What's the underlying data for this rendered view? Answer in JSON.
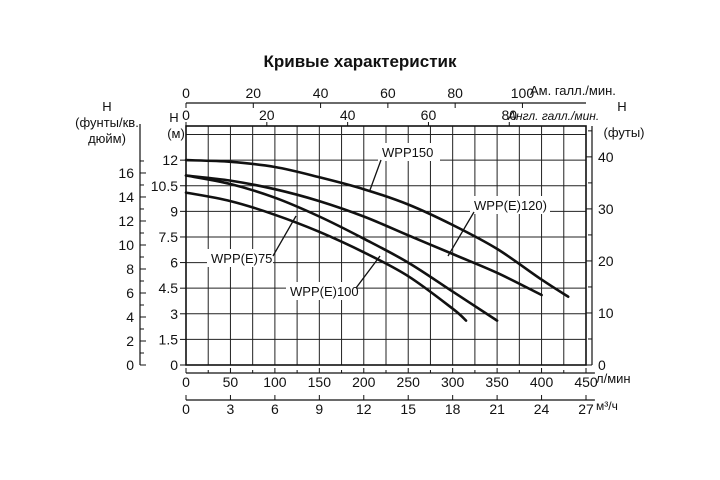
{
  "chart_data": {
    "type": "line",
    "title": "Кривые характеристик",
    "axes": {
      "x_bottom": {
        "unit": "л/мин",
        "range": [
          0,
          450
        ],
        "ticks": [
          0,
          50,
          100,
          150,
          200,
          250,
          300,
          350,
          400,
          450
        ]
      },
      "x_bottom2": {
        "unit": "м³/ч",
        "range": [
          0,
          27
        ],
        "ticks": [
          0,
          3,
          6,
          9,
          12,
          15,
          18,
          21,
          24,
          27
        ]
      },
      "x_top": {
        "unit": "Ам. галл./мин.",
        "range": [
          0,
          118.9
        ],
        "ticks": [
          0,
          20,
          40,
          60,
          80,
          100
        ]
      },
      "x_top2": {
        "unit": "Англ. галл./мин.",
        "range": [
          0,
          99
        ],
        "ticks": [
          0,
          20,
          40,
          60,
          80
        ]
      },
      "y_left_m": {
        "label": "H (м)",
        "range": [
          0,
          14
        ],
        "ticks": [
          "0",
          "1.5",
          "3",
          "4.5",
          "6",
          "7.5",
          "9",
          "10.5",
          "12"
        ]
      },
      "y_left_psi": {
        "label": "H (фунты/кв. дюйм)",
        "range": [
          0,
          19.9
        ],
        "ticks": [
          0,
          2,
          4,
          6,
          8,
          10,
          12,
          14,
          16
        ]
      },
      "y_right_ft": {
        "label": "H (футы)",
        "range": [
          0,
          45.9
        ],
        "ticks": [
          0,
          10,
          20,
          30,
          40
        ]
      }
    },
    "grid": true,
    "series": [
      {
        "name": "WPP150",
        "x": [
          0,
          50,
          100,
          150,
          200,
          250,
          300,
          350,
          400,
          430
        ],
        "y": [
          12,
          11.9,
          11.6,
          11.0,
          10.3,
          9.4,
          8.2,
          6.8,
          5.0,
          4.0
        ]
      },
      {
        "name": "WPP(E)120)",
        "x": [
          0,
          50,
          100,
          150,
          200,
          250,
          300,
          350,
          400
        ],
        "y": [
          11.1,
          10.8,
          10.3,
          9.6,
          8.7,
          7.6,
          6.5,
          5.4,
          4.1
        ]
      },
      {
        "name": "WPP(E)100",
        "x": [
          0,
          50,
          100,
          150,
          200,
          250,
          300,
          350
        ],
        "y": [
          11.1,
          10.6,
          9.8,
          8.7,
          7.4,
          6.0,
          4.3,
          2.6
        ]
      },
      {
        "name": "WPP(E)75",
        "x": [
          0,
          50,
          100,
          150,
          200,
          250,
          300,
          315
        ],
        "y": [
          10.1,
          9.6,
          8.8,
          7.8,
          6.6,
          5.2,
          3.3,
          2.6
        ]
      }
    ],
    "labels": {
      "y_left_psi_1": "H",
      "y_left_psi_2": "(фунты/кв.",
      "y_left_psi_3": "дюйм)",
      "y_left_m_1": "H",
      "y_left_m_2": "(м)",
      "y_right_1": "H",
      "y_right_2": "(футы)"
    }
  }
}
